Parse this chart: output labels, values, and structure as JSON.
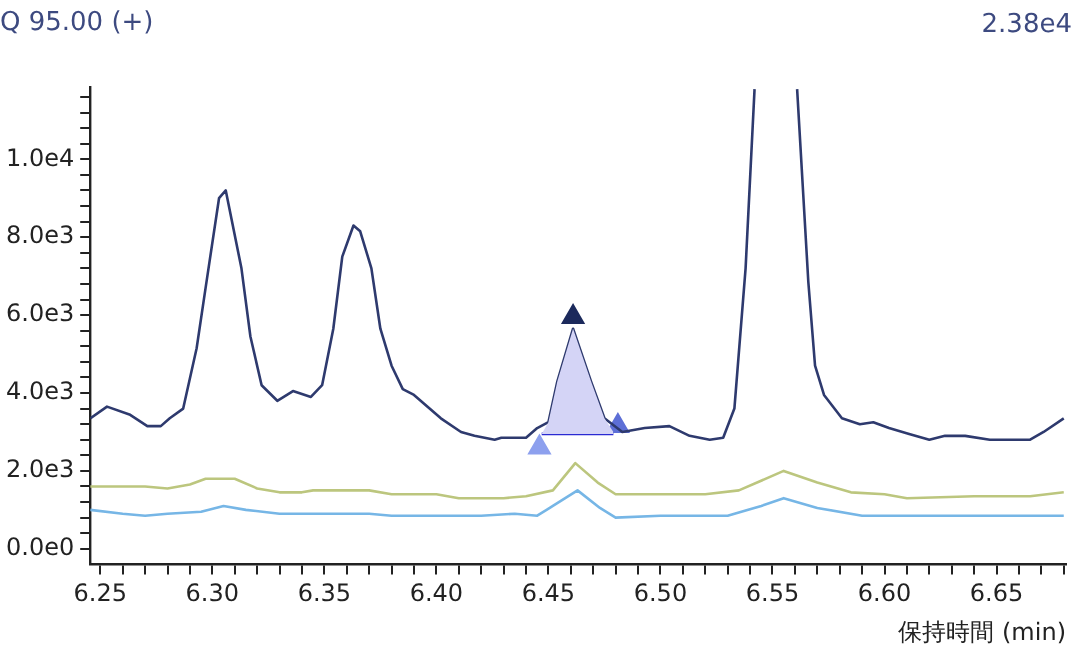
{
  "chart_data": {
    "type": "line",
    "title": "Q 95.00 (+)",
    "annotations": [
      "2.38e4"
    ],
    "xlabel": "保持時間 (min)",
    "xlim": [
      6.2455,
      6.681
    ],
    "xticks": [
      6.25,
      {
        "value": 6.26,
        "label": null
      },
      {
        "value": 6.27,
        "label": null
      },
      {
        "value": 6.28,
        "label": null
      },
      {
        "value": 6.29,
        "label": null
      },
      "6.30",
      {
        "value": 6.31,
        "label": null
      },
      {
        "value": 6.32,
        "label": null
      },
      {
        "value": 6.33,
        "label": null
      },
      {
        "value": 6.34,
        "label": null
      },
      6.35,
      {
        "value": 6.36,
        "label": null
      },
      {
        "value": 6.37,
        "label": null
      },
      {
        "value": 6.38,
        "label": null
      },
      {
        "value": 6.39,
        "label": null
      },
      {
        "value": 6.4,
        "label": "6.40"
      },
      {
        "value": 6.41,
        "label": null
      },
      {
        "value": 6.42,
        "label": null
      },
      {
        "value": 6.43,
        "label": null
      },
      {
        "value": 6.44,
        "label": null
      },
      6.45,
      {
        "value": 6.46,
        "label": null
      },
      {
        "value": 6.47,
        "label": null
      },
      {
        "value": 6.48,
        "label": null
      },
      {
        "value": 6.49,
        "label": null
      },
      {
        "value": 6.5,
        "label": "6.50"
      },
      {
        "value": 6.51,
        "label": null
      },
      {
        "value": 6.52,
        "label": null
      },
      {
        "value": 6.53,
        "label": null
      },
      {
        "value": 6.54,
        "label": null
      },
      6.55,
      {
        "value": 6.56,
        "label": null
      },
      {
        "value": 6.57,
        "label": null
      },
      {
        "value": 6.58,
        "label": null
      },
      {
        "value": 6.59,
        "label": null
      },
      {
        "value": 6.6,
        "label": "6.60"
      },
      {
        "value": 6.61,
        "label": null
      },
      {
        "value": 6.62,
        "label": null
      },
      {
        "value": 6.63,
        "label": null
      },
      {
        "value": 6.64,
        "label": null
      },
      6.65,
      {
        "value": 6.66,
        "label": null
      },
      {
        "value": 6.67,
        "label": null
      },
      {
        "value": 6.68,
        "label": null
      }
    ],
    "ylim": [
      -400,
      11850
    ],
    "yticks": [
      {
        "value": 0,
        "label": "0.0e0"
      },
      {
        "value": 400,
        "label": null
      },
      {
        "value": 800,
        "label": null
      },
      {
        "value": 1200,
        "label": null
      },
      {
        "value": 1600,
        "label": null
      },
      {
        "value": 2000,
        "label": "2.0e3"
      },
      {
        "value": 2400,
        "label": null
      },
      {
        "value": 2800,
        "label": null
      },
      {
        "value": 3200,
        "label": null
      },
      {
        "value": 3600,
        "label": null
      },
      {
        "value": 4000,
        "label": "4.0e3"
      },
      {
        "value": 4400,
        "label": null
      },
      {
        "value": 4800,
        "label": null
      },
      {
        "value": 5200,
        "label": null
      },
      {
        "value": 5600,
        "label": null
      },
      {
        "value": 6000,
        "label": "6.0e3"
      },
      {
        "value": 6400,
        "label": null
      },
      {
        "value": 6800,
        "label": null
      },
      {
        "value": 7200,
        "label": null
      },
      {
        "value": 7600,
        "label": null
      },
      {
        "value": 8000,
        "label": "8.0e3"
      },
      {
        "value": 8400,
        "label": null
      },
      {
        "value": 8800,
        "label": null
      },
      {
        "value": 9200,
        "label": null
      },
      {
        "value": 9600,
        "label": null
      },
      {
        "value": 10000,
        "label": "1.0e4"
      },
      {
        "value": 10400,
        "label": null
      },
      {
        "value": 10800,
        "label": null
      },
      {
        "value": 11200,
        "label": null
      },
      {
        "value": 11600,
        "label": null
      }
    ],
    "grid": false,
    "legend": false,
    "marker": "none",
    "line_style": "solid",
    "series": [
      {
        "color": "#2a2ad2",
        "x": [
          6.447,
          6.45,
          6.454,
          6.461,
          6.469,
          6.475,
          6.479
        ],
        "values": [
          2950,
          2950,
          2950,
          2950,
          2950,
          2950,
          2950
        ],
        "lower": [
          2950,
          2950,
          2950,
          2950,
          2950,
          2950,
          2950
        ],
        "upper": [
          2950,
          3250,
          4300,
          5650,
          4300,
          3350,
          3000
        ]
      },
      {
        "color": "#bcc67e",
        "x": [
          6.2455,
          6.27,
          6.28,
          6.29,
          6.297,
          6.31,
          6.32,
          6.33,
          6.34,
          6.345,
          6.37,
          6.38,
          6.4,
          6.41,
          6.43,
          6.44,
          6.452,
          6.462,
          6.472,
          6.48,
          6.52,
          6.535,
          6.555,
          6.57,
          6.585,
          6.6,
          6.61,
          6.64,
          6.665,
          6.68
        ],
        "values": [
          1600,
          1600,
          1550,
          1650,
          1800,
          1800,
          1550,
          1450,
          1450,
          1500,
          1500,
          1400,
          1400,
          1300,
          1300,
          1350,
          1500,
          2200,
          1700,
          1400,
          1400,
          1500,
          2000,
          1700,
          1450,
          1400,
          1300,
          1350,
          1350,
          1450
        ]
      },
      {
        "color": "#76b6e6",
        "x": [
          6.2455,
          6.26,
          6.27,
          6.28,
          6.295,
          6.305,
          6.315,
          6.33,
          6.37,
          6.38,
          6.42,
          6.435,
          6.445,
          6.452,
          6.463,
          6.473,
          6.48,
          6.5,
          6.53,
          6.545,
          6.555,
          6.57,
          6.59,
          6.68
        ],
        "values": [
          1000,
          900,
          850,
          900,
          950,
          1100,
          1000,
          900,
          900,
          850,
          850,
          900,
          850,
          1100,
          1500,
          1050,
          800,
          850,
          850,
          1100,
          1300,
          1050,
          850,
          850
        ]
      },
      {
        "color": "#2e3a6e",
        "x": [
          6.2455,
          6.253,
          6.263,
          6.271,
          6.277,
          6.281,
          6.287,
          6.293,
          6.297,
          6.303,
          6.306,
          6.313,
          6.317,
          6.322,
          6.329,
          6.336,
          6.344,
          6.349,
          6.354,
          6.358,
          6.363,
          6.366,
          6.371,
          6.375,
          6.38,
          6.385,
          6.39,
          6.402,
          6.411,
          6.417,
          6.426,
          6.429,
          6.44,
          6.445,
          6.45,
          6.454,
          6.461,
          6.469,
          6.475,
          6.483,
          6.493,
          6.504,
          6.513,
          6.522,
          6.528,
          6.533,
          6.538,
          6.542,
          6.55,
          6.561,
          6.566,
          6.569,
          6.573,
          6.581,
          6.589,
          6.595,
          6.602,
          6.611,
          6.62,
          6.627,
          6.636,
          6.647,
          6.665,
          6.671,
          6.68
        ],
        "values": [
          3350,
          3650,
          3450,
          3150,
          3150,
          3350,
          3600,
          5150,
          6700,
          9000,
          9200,
          7200,
          5450,
          4200,
          3800,
          4050,
          3900,
          4200,
          5650,
          7500,
          8300,
          8150,
          7200,
          5650,
          4700,
          4100,
          3950,
          3350,
          3000,
          2900,
          2800,
          2850,
          2850,
          3100,
          3250,
          4300,
          5650,
          4300,
          3350,
          3000,
          3100,
          3150,
          2900,
          2800,
          2850,
          3600,
          7200,
          11800,
          null,
          11800,
          6850,
          4700,
          3950,
          3350,
          3200,
          3250,
          3100,
          2950,
          2800,
          2900,
          2900,
          2800,
          2800,
          3000,
          3350
        ]
      },
      {
        "type": "scatter",
        "marker": "triangle",
        "colors": [
          "#8da0ee",
          "#1c2a5c",
          "#5d6fd6"
        ],
        "x": [
          6.446,
          6.461,
          6.481
        ],
        "values": [
          2600,
          5950,
          3150
        ]
      }
    ]
  }
}
